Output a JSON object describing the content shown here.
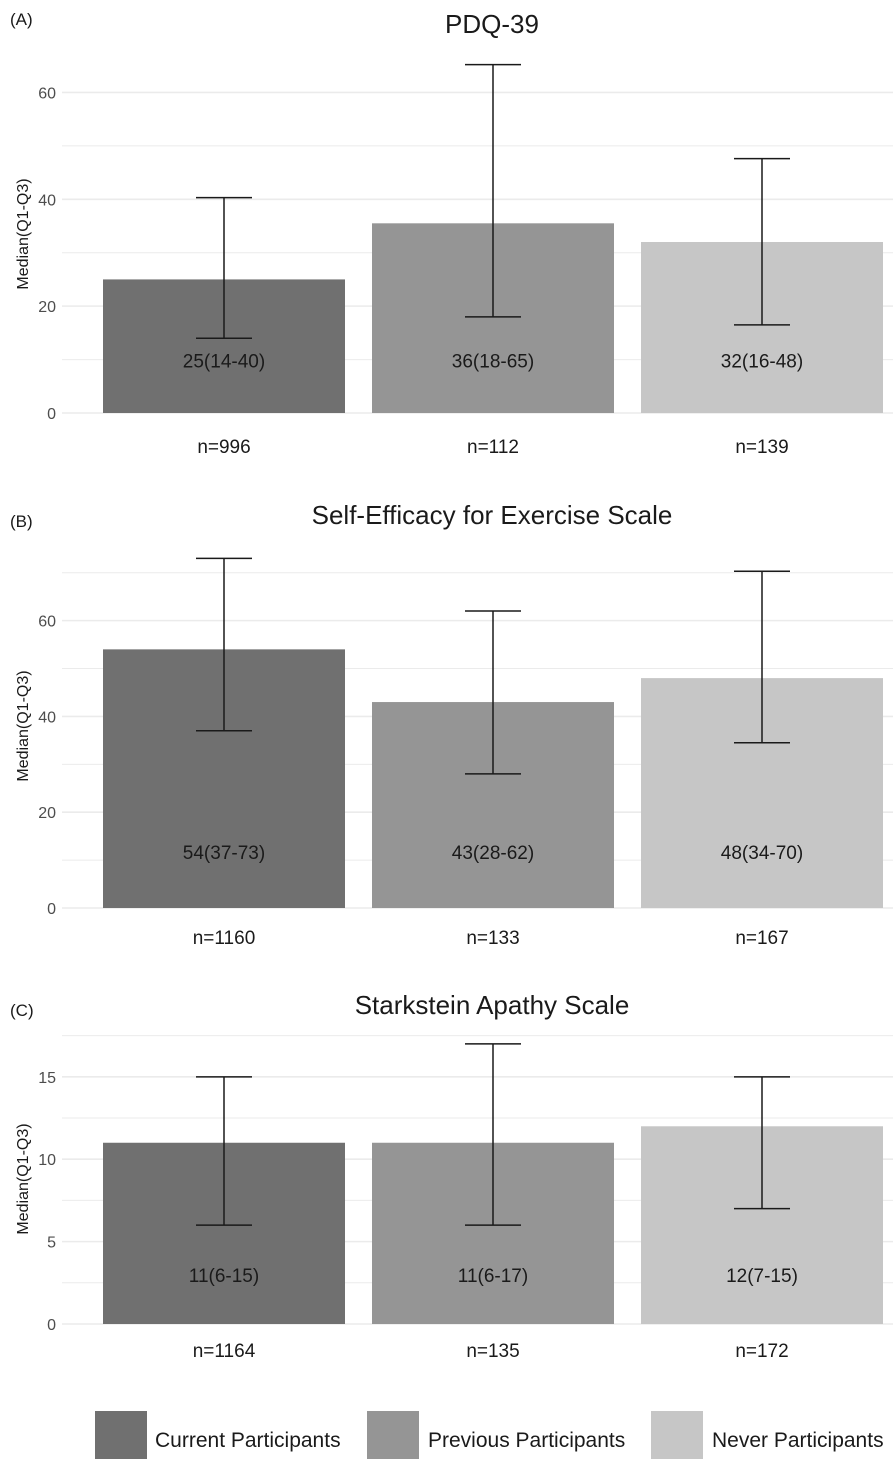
{
  "chart_data": [
    {
      "type": "bar",
      "panel": "(A)",
      "title": "PDQ-39",
      "ylabel": "Median(Q1-Q3)",
      "ylim": [
        0,
        67
      ],
      "yticks": [
        0,
        20,
        40,
        60
      ],
      "categories": [
        "Current Participants",
        "Previous Participants",
        "Never Participants"
      ],
      "values": [
        25,
        35.5,
        32
      ],
      "q1": [
        14,
        18,
        16.5
      ],
      "q3": [
        40.3,
        65.2,
        47.6
      ],
      "bar_labels": [
        "25(14-40)",
        "36(18-65)",
        "32(16-48)"
      ],
      "n_labels": [
        "n=996",
        "n=112",
        "n=139"
      ]
    },
    {
      "type": "bar",
      "panel": "(B)",
      "title": "Self-Efficacy for Exercise Scale",
      "ylabel": "Median(Q1-Q3)",
      "ylim": [
        0,
        76
      ],
      "yticks": [
        0,
        20,
        40,
        60
      ],
      "categories": [
        "Current Participants",
        "Previous Participants",
        "Never Participants"
      ],
      "values": [
        54,
        43,
        48
      ],
      "q1": [
        37,
        28,
        34.5
      ],
      "q3": [
        73,
        62,
        70.3
      ],
      "bar_labels": [
        "54(37-73)",
        "43(28-62)",
        "48(34-70)"
      ],
      "n_labels": [
        "n=1160",
        "n=133",
        "n=167"
      ]
    },
    {
      "type": "bar",
      "panel": "(C)",
      "title": "Starkstein Apathy Scale",
      "ylabel": "Median(Q1-Q3)",
      "ylim": [
        0,
        17.6
      ],
      "yticks": [
        0,
        5,
        10,
        15
      ],
      "categories": [
        "Current Participants",
        "Previous Participants",
        "Never Participants"
      ],
      "values": [
        11,
        11,
        12
      ],
      "q1": [
        6,
        6,
        7
      ],
      "q3": [
        15,
        17,
        15
      ],
      "bar_labels": [
        "11(6-15)",
        "11(6-17)",
        "12(7-15)"
      ],
      "n_labels": [
        "n=1164",
        "n=135",
        "n=172"
      ]
    }
  ],
  "legend": {
    "position": "bottom",
    "items": [
      {
        "label": "Current Participants",
        "color": "#707070"
      },
      {
        "label": "Previous Participants",
        "color": "#959595"
      },
      {
        "label": "Never Participants",
        "color": "#c6c6c6"
      }
    ]
  },
  "colors": {
    "gridline": "#ebebeb",
    "errorbar": "#1a1a1a"
  }
}
